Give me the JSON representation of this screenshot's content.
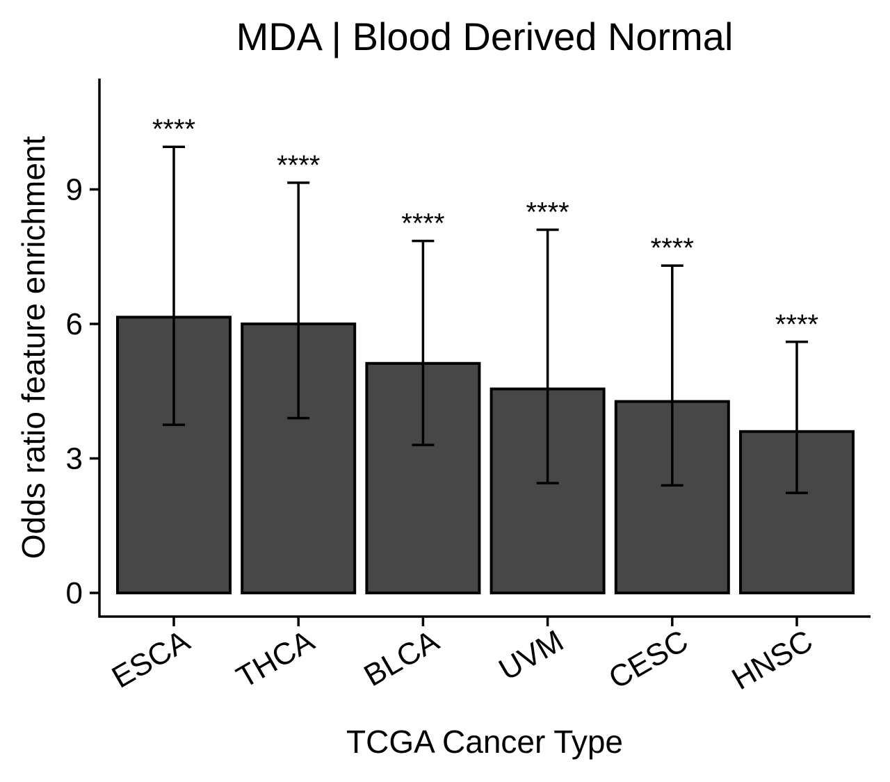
{
  "chart_data": {
    "type": "bar",
    "title": "MDA | Blood Derived Normal",
    "xlabel": "TCGA Cancer Type",
    "ylabel": "Odds ratio feature enrichment",
    "categories": [
      "ESCA",
      "THCA",
      "BLCA",
      "UVM",
      "CESC",
      "HNSC"
    ],
    "values": [
      6.15,
      6.0,
      5.12,
      4.55,
      4.27,
      3.6
    ],
    "error_low": [
      3.75,
      3.9,
      3.3,
      2.45,
      2.4,
      2.23
    ],
    "error_high": [
      9.95,
      9.15,
      7.85,
      8.1,
      7.3,
      5.6
    ],
    "annotations": [
      "****",
      "****",
      "****",
      "****",
      "****",
      "****"
    ],
    "yticks": [
      0,
      3,
      6,
      9
    ],
    "ylim": [
      -0.5,
      11.5
    ],
    "grid": false,
    "legend": false,
    "bar_color": "#474747",
    "edge_color": "#000000"
  }
}
